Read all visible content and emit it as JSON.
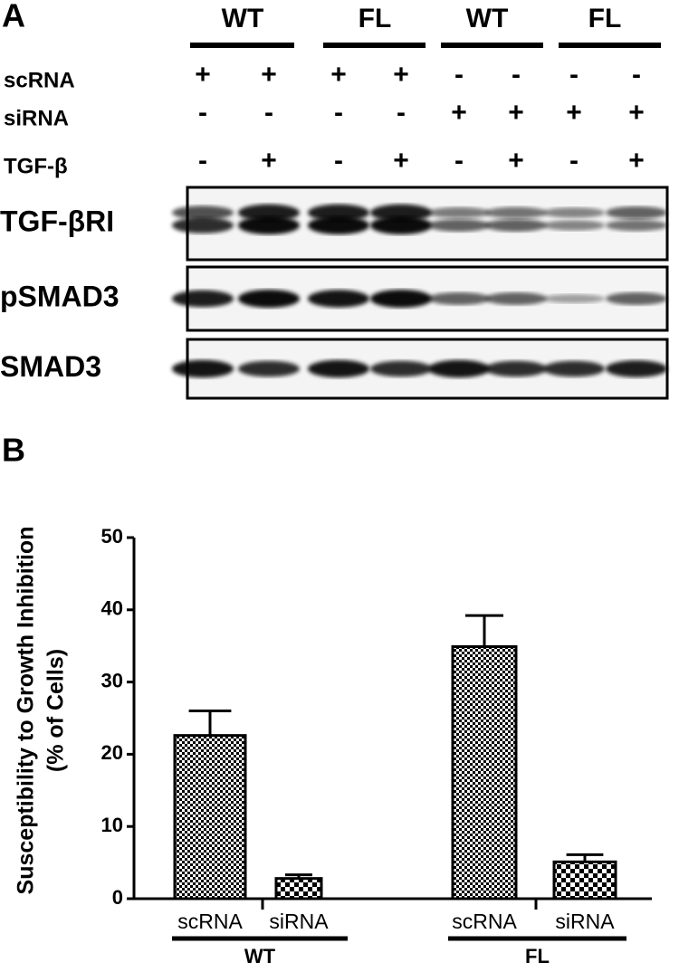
{
  "panel_a": {
    "label": "A",
    "groups": [
      "WT",
      "FL",
      "WT",
      "FL"
    ],
    "conditions": [
      {
        "name": "scRNA",
        "signs": [
          "+",
          "+",
          "+",
          "+",
          "-",
          "-",
          "-",
          "-"
        ]
      },
      {
        "name": "siRNA",
        "signs": [
          "-",
          "-",
          "-",
          "-",
          "+",
          "+",
          "+",
          "+"
        ]
      },
      {
        "name": "TGF-β",
        "signs": [
          "-",
          "+",
          "-",
          "+",
          "-",
          "+",
          "-",
          "+"
        ]
      }
    ],
    "blots": [
      "TGF-βRI",
      "pSMAD3",
      "SMAD3"
    ]
  },
  "chart_data": {
    "type": "bar",
    "panel_label": "B",
    "y_label": [
      "Susceptibility to Growth Inhibition",
      "(% of Cells)"
    ],
    "categories": [
      "scRNA",
      "siRNA",
      "scRNA",
      "siRNA"
    ],
    "groups": [
      "WT",
      "FL"
    ],
    "values": [
      22.6,
      2.8,
      34.9,
      5.1
    ],
    "errors": [
      3.4,
      0.5,
      4.3,
      1.0
    ],
    "ylim": [
      0,
      50
    ],
    "yticks": [
      0,
      10,
      20,
      30,
      40,
      50
    ]
  }
}
